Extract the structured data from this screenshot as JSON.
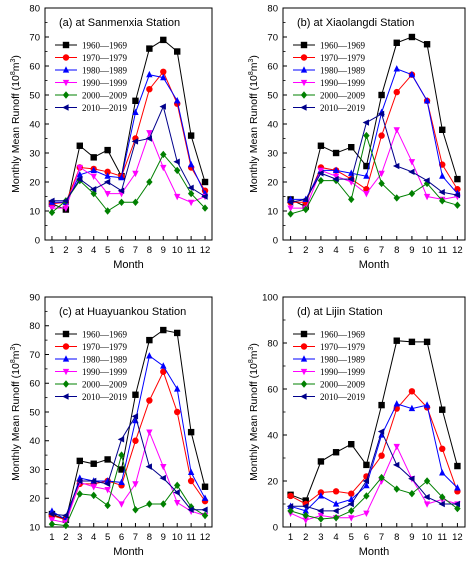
{
  "figure": {
    "x_axis_label": "Month",
    "y_axis_label_base": "Monthly Mean Runoff (10",
    "y_axis_label_exp1": "8",
    "y_axis_label_mid": "m",
    "y_axis_label_exp2": "3",
    "y_axis_label_end": ")"
  },
  "chart_data": [
    {
      "type": "line",
      "title": "(a) at Sanmenxia Station",
      "xlabel": "Month",
      "ylabel": "Monthly Mean Runoff (10^8 m^3)",
      "x": [
        1,
        2,
        3,
        4,
        5,
        6,
        7,
        8,
        9,
        10,
        11,
        12
      ],
      "xlim": [
        0.5,
        12.5
      ],
      "ylim": [
        0,
        80
      ],
      "yticks": [
        0,
        10,
        20,
        30,
        40,
        50,
        60,
        70,
        80
      ],
      "legend_position": "top-left",
      "series": [
        {
          "name": "1960—1969",
          "color": "#000000",
          "marker": "square",
          "values": [
            12.5,
            10.5,
            32.5,
            28.5,
            31,
            22,
            48,
            66,
            69,
            65,
            36,
            20
          ]
        },
        {
          "name": "1970—1979",
          "color": "#ff0000",
          "marker": "circle",
          "values": [
            12.5,
            13,
            25,
            24.5,
            23.5,
            22,
            35,
            52,
            58,
            47,
            25,
            17
          ]
        },
        {
          "name": "1980—1989",
          "color": "#0000ff",
          "marker": "triangle-up",
          "values": [
            13,
            13,
            22.5,
            24,
            22,
            21.5,
            44,
            57,
            56,
            48,
            26,
            16
          ]
        },
        {
          "name": "1990—1999",
          "color": "#ff00ff",
          "marker": "triangle-down",
          "values": [
            11,
            11,
            25,
            22,
            16,
            16,
            23,
            37,
            25,
            15,
            13,
            15
          ]
        },
        {
          "name": "2000—2009",
          "color": "#008000",
          "marker": "diamond",
          "values": [
            9.5,
            13.5,
            20.5,
            16,
            10,
            13,
            13,
            20,
            29.5,
            24,
            16,
            11
          ]
        },
        {
          "name": "2010—2019",
          "color": "#00008b",
          "marker": "triangle-left",
          "values": [
            13.5,
            13.5,
            21,
            17.5,
            20,
            17,
            34,
            35,
            46,
            27,
            18,
            15
          ]
        }
      ]
    },
    {
      "type": "line",
      "title": "(b) at Xiaolangdi Station",
      "xlabel": "Month",
      "ylabel": "Monthly Mean Runoff (10^8 m^3)",
      "x": [
        1,
        2,
        3,
        4,
        5,
        6,
        7,
        8,
        9,
        10,
        11,
        12
      ],
      "xlim": [
        0.5,
        12.5
      ],
      "ylim": [
        0,
        80
      ],
      "yticks": [
        0,
        10,
        20,
        30,
        40,
        50,
        60,
        70,
        80
      ],
      "legend_position": "top-left",
      "series": [
        {
          "name": "1960—1969",
          "color": "#000000",
          "marker": "square",
          "values": [
            14,
            11.5,
            32.5,
            30,
            32,
            25.5,
            50,
            68,
            70,
            67.5,
            38,
            21
          ]
        },
        {
          "name": "1970—1979",
          "color": "#ff0000",
          "marker": "circle",
          "values": [
            13,
            13,
            25,
            24,
            21,
            17.5,
            36,
            51,
            57,
            48,
            26,
            17.5
          ]
        },
        {
          "name": "1980—1989",
          "color": "#0000ff",
          "marker": "triangle-up",
          "values": [
            14,
            14,
            24,
            24,
            23,
            22,
            44,
            59,
            57,
            48,
            22,
            16
          ]
        },
        {
          "name": "1990—1999",
          "color": "#ff00ff",
          "marker": "triangle-down",
          "values": [
            11,
            11,
            24,
            22,
            20,
            16,
            23,
            38,
            27,
            15,
            14,
            15
          ]
        },
        {
          "name": "2000—2009",
          "color": "#008000",
          "marker": "diamond",
          "values": [
            9,
            10.5,
            20.5,
            20.5,
            14,
            36,
            19.5,
            14.5,
            16,
            19.5,
            13.5,
            12
          ]
        },
        {
          "name": "2010—2019",
          "color": "#00008b",
          "marker": "triangle-left",
          "values": [
            13,
            14,
            23,
            21,
            21,
            40.5,
            43.5,
            25.5,
            23.5,
            20.5,
            16.5,
            15.5
          ]
        }
      ]
    },
    {
      "type": "line",
      "title": "(c) at Huayuankou Station",
      "xlabel": "Month",
      "ylabel": "Monthly Mean Runoff (10^8 m^3)",
      "x": [
        1,
        2,
        3,
        4,
        5,
        6,
        7,
        8,
        9,
        10,
        11,
        12
      ],
      "xlim": [
        0.5,
        12.5
      ],
      "ylim": [
        10,
        90
      ],
      "yticks": [
        10,
        20,
        30,
        40,
        50,
        60,
        70,
        80,
        90
      ],
      "legend_position": "top-left",
      "series": [
        {
          "name": "1960—1969",
          "color": "#000000",
          "marker": "square",
          "values": [
            14.5,
            12.5,
            33,
            32,
            33.5,
            30,
            56,
            75,
            78.5,
            77.5,
            43,
            24
          ]
        },
        {
          "name": "1970—1979",
          "color": "#ff0000",
          "marker": "circle",
          "values": [
            14,
            12.5,
            25,
            25,
            26,
            24.5,
            40,
            54,
            64,
            50,
            26,
            19
          ]
        },
        {
          "name": "1980—1989",
          "color": "#0000ff",
          "marker": "triangle-up",
          "values": [
            15.5,
            12.5,
            27,
            26,
            26,
            25.5,
            47,
            69.5,
            66,
            58,
            29,
            20
          ]
        },
        {
          "name": "1990—1999",
          "color": "#ff00ff",
          "marker": "triangle-down",
          "values": [
            12.5,
            11.5,
            25.5,
            24,
            23,
            18,
            25,
            43,
            31,
            18.5,
            15.5,
            14
          ]
        },
        {
          "name": "2000—2009",
          "color": "#008000",
          "marker": "diamond",
          "values": [
            11,
            10.5,
            21.5,
            21,
            17.5,
            35,
            16,
            18,
            18,
            24.5,
            17,
            14
          ]
        },
        {
          "name": "2010—2019",
          "color": "#00008b",
          "marker": "triangle-left",
          "values": [
            14.5,
            14,
            26,
            26,
            25,
            40.5,
            48.5,
            31,
            27,
            22,
            16,
            16
          ]
        }
      ]
    },
    {
      "type": "line",
      "title": "(d) at Lijin Station",
      "xlabel": "Month",
      "ylabel": "Monthly Mean Runoff (10^8 m^3)",
      "x": [
        1,
        2,
        3,
        4,
        5,
        6,
        7,
        8,
        9,
        10,
        11,
        12
      ],
      "xlim": [
        0.5,
        12.5
      ],
      "ylim": [
        0,
        100
      ],
      "yticks": [
        0,
        20,
        40,
        60,
        80,
        100
      ],
      "legend_position": "top-left",
      "series": [
        {
          "name": "1960—1969",
          "color": "#000000",
          "marker": "square",
          "values": [
            14,
            11.5,
            28.5,
            32.5,
            36,
            27,
            53,
            81,
            80.5,
            80.5,
            51,
            26.5
          ]
        },
        {
          "name": "1970—1979",
          "color": "#ff0000",
          "marker": "circle",
          "values": [
            13.5,
            10,
            15,
            15.5,
            14.5,
            22,
            31,
            51.5,
            59,
            52,
            34,
            15.5
          ]
        },
        {
          "name": "1980—1989",
          "color": "#0000ff",
          "marker": "triangle-up",
          "values": [
            9,
            7,
            13.5,
            10,
            12,
            18,
            40,
            53.5,
            51.5,
            53,
            23.5,
            17
          ]
        },
        {
          "name": "1990—1999",
          "color": "#ff00ff",
          "marker": "triangle-down",
          "values": [
            6,
            3,
            5,
            4,
            4,
            6,
            20,
            35,
            21,
            10,
            12,
            10
          ]
        },
        {
          "name": "2000—2009",
          "color": "#008000",
          "marker": "diamond",
          "values": [
            7,
            5,
            3.5,
            4,
            7,
            13.5,
            21.5,
            16.5,
            14.5,
            20,
            13,
            8
          ]
        },
        {
          "name": "2010—2019",
          "color": "#00008b",
          "marker": "triangle-left",
          "values": [
            9,
            9,
            7,
            7,
            10,
            20,
            41.5,
            27,
            21,
            13,
            10,
            10
          ]
        }
      ]
    }
  ]
}
